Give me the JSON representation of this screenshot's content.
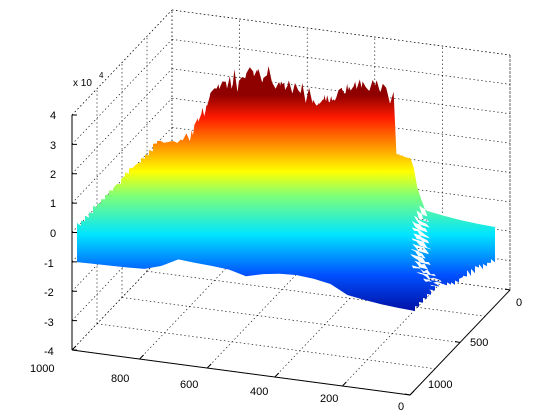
{
  "chart_data": {
    "type": "surface",
    "title": "",
    "xlabel": "",
    "ylabel": "",
    "zlabel": "",
    "x_ticks": [
      0,
      200,
      400,
      600,
      800,
      1000
    ],
    "y_ticks": [
      0,
      500,
      1000
    ],
    "z_ticks": [
      -4,
      -3,
      -2,
      -1,
      0,
      1,
      2,
      3,
      4
    ],
    "z_exponent_base": "x 10",
    "z_exponent_power": "4",
    "xlim": [
      0,
      1000
    ],
    "ylim": [
      0,
      1000
    ],
    "zlim": [
      -40000,
      40000
    ],
    "grid": true,
    "colormap": "jet",
    "profile_x": [
      0,
      50,
      100,
      150,
      200,
      250,
      300,
      350,
      400,
      450,
      500,
      550,
      600,
      650,
      700,
      750,
      800,
      850,
      900,
      950,
      1000
    ],
    "profile_z": [
      -8000,
      -6000,
      -3000,
      2000,
      8000,
      28000,
      35000,
      38000,
      36000,
      30000,
      20000,
      30000,
      33000,
      35000,
      38000,
      18000,
      6000,
      4000,
      3000,
      2000,
      1000
    ]
  },
  "colors": {
    "dark_blue": "#00008f",
    "blue": "#0050ff",
    "cyan": "#00e5ff",
    "yellow": "#ffff00",
    "red": "#ff1a00",
    "dark_red": "#8f0000"
  }
}
